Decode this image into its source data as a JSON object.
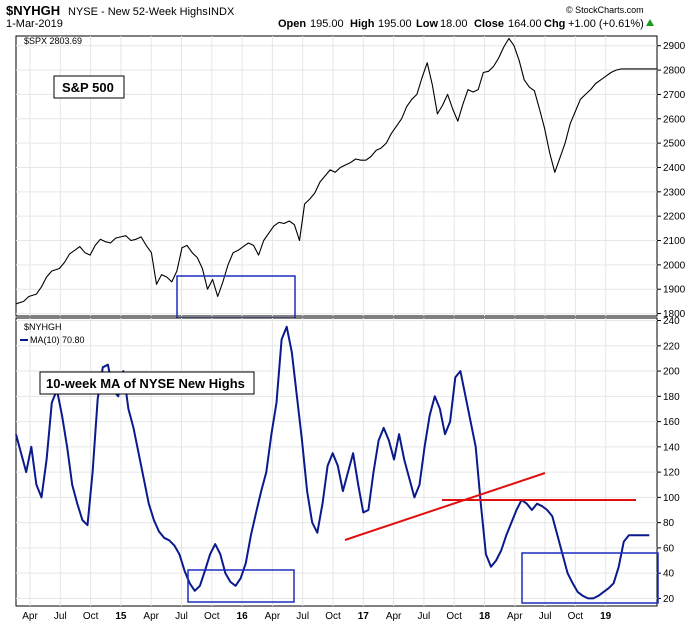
{
  "header": {
    "symbol": "$NYHGH",
    "title": "NYSE - New 52-Week Highs",
    "exchange": "INDX",
    "date": "1-Mar-2019",
    "open_label": "Open",
    "open": "195.00",
    "high_label": "High",
    "high": "195.00",
    "low_label": "Low",
    "low": "18.00",
    "close_label": "Close",
    "close": "164.00",
    "chg_label": "Chg",
    "chg": "+1.00 (+0.61%)",
    "watermark": "© StockCharts.com"
  },
  "colors": {
    "price": "#000000",
    "ma": "#0a1a8c",
    "box": "#1a2fbf",
    "trendline": "#e01010",
    "grid": "#e6e6e6"
  },
  "chart_data": [
    {
      "type": "line",
      "legend": "$SPX 2803.69",
      "annotation": "S&P 500",
      "ylim": [
        1790,
        2940
      ],
      "yticks": [
        1800,
        1900,
        2000,
        2100,
        2200,
        2300,
        2400,
        2500,
        2600,
        2700,
        2800,
        2900
      ],
      "x": [
        0,
        3,
        5,
        8,
        10,
        12,
        14,
        17,
        19,
        21,
        23,
        25,
        27,
        29,
        31,
        33,
        35,
        37,
        39,
        41,
        43,
        45,
        47,
        49,
        51,
        53,
        55,
        57,
        59,
        61,
        63,
        65,
        67,
        69,
        71,
        73,
        75,
        77,
        79,
        81,
        83,
        85,
        87,
        89,
        91,
        93,
        95,
        97,
        99,
        101,
        103,
        105,
        107,
        109,
        111,
        113,
        115,
        117,
        119,
        121,
        123,
        125,
        127,
        129,
        131,
        133,
        135,
        137,
        139,
        141,
        143,
        145,
        147,
        149,
        151,
        153,
        155,
        157,
        159,
        161,
        163,
        165,
        167,
        169,
        171,
        173,
        175,
        177,
        179,
        181,
        183,
        185,
        187,
        189,
        191,
        193,
        195,
        197,
        199,
        201,
        203,
        205,
        207,
        209,
        211,
        213,
        215,
        217,
        219,
        221,
        223,
        225,
        227,
        229,
        231,
        233,
        235,
        237,
        239,
        241,
        243,
        245,
        247,
        249,
        251
      ],
      "values": [
        1840,
        1850,
        1870,
        1880,
        1910,
        1950,
        1975,
        1985,
        2010,
        2045,
        2060,
        2075,
        2050,
        2040,
        2080,
        2105,
        2095,
        2090,
        2110,
        2115,
        2120,
        2100,
        2105,
        2115,
        2080,
        2050,
        1920,
        1960,
        1950,
        1930,
        1975,
        2070,
        2080,
        2050,
        2030,
        1985,
        1900,
        1940,
        1870,
        1930,
        2000,
        2050,
        2060,
        2075,
        2090,
        2080,
        2040,
        2100,
        2130,
        2160,
        2175,
        2170,
        2180,
        2165,
        2100,
        2250,
        2270,
        2295,
        2340,
        2365,
        2390,
        2380,
        2400,
        2410,
        2420,
        2435,
        2430,
        2430,
        2445,
        2470,
        2480,
        2500,
        2540,
        2570,
        2600,
        2650,
        2680,
        2700,
        2770,
        2830,
        2740,
        2620,
        2655,
        2700,
        2640,
        2590,
        2660,
        2720,
        2710,
        2720,
        2790,
        2795,
        2815,
        2850,
        2895,
        2930,
        2900,
        2840,
        2760,
        2730,
        2715,
        2640,
        2560,
        2460,
        2380,
        2440,
        2500,
        2580,
        2630,
        2680,
        2700,
        2720,
        2745,
        2760,
        2775,
        2790,
        2800,
        2805,
        2805,
        2805,
        2805,
        2805,
        2805,
        2805,
        2805
      ]
    },
    {
      "type": "line",
      "legend_symbol": "$NYHGH",
      "legend": "MA(10) 70.80",
      "annotation": "10-week MA of NYSE New Highs",
      "ylim": [
        14,
        242
      ],
      "yticks": [
        20,
        40,
        60,
        80,
        100,
        120,
        140,
        160,
        180,
        200,
        220,
        240
      ],
      "x": [
        0,
        2,
        4,
        6,
        8,
        10,
        12,
        14,
        16,
        18,
        20,
        22,
        24,
        26,
        28,
        30,
        32,
        34,
        36,
        38,
        40,
        42,
        44,
        46,
        48,
        50,
        52,
        54,
        56,
        58,
        60,
        62,
        64,
        66,
        68,
        70,
        72,
        74,
        76,
        78,
        80,
        82,
        84,
        86,
        88,
        90,
        92,
        94,
        96,
        98,
        100,
        102,
        104,
        106,
        108,
        110,
        112,
        114,
        116,
        118,
        120,
        122,
        124,
        126,
        128,
        130,
        132,
        134,
        136,
        138,
        140,
        142,
        144,
        146,
        148,
        150,
        152,
        154,
        156,
        158,
        160,
        162,
        164,
        166,
        168,
        170,
        172,
        174,
        176,
        178,
        180,
        182,
        184,
        186,
        188,
        190,
        192,
        194,
        196,
        198,
        200,
        202,
        204,
        206,
        208,
        210,
        212,
        214,
        216,
        218,
        220,
        222,
        224,
        226,
        228,
        230,
        232,
        234,
        236,
        238,
        240,
        242,
        244,
        246,
        248
      ],
      "values": [
        150,
        135,
        120,
        140,
        110,
        100,
        130,
        175,
        185,
        165,
        140,
        110,
        95,
        82,
        78,
        120,
        178,
        203,
        205,
        185,
        180,
        200,
        170,
        155,
        135,
        115,
        95,
        82,
        73,
        68,
        66,
        62,
        55,
        42,
        32,
        26,
        30,
        42,
        55,
        63,
        55,
        40,
        33,
        30,
        36,
        48,
        70,
        88,
        105,
        120,
        150,
        175,
        225,
        235,
        215,
        180,
        145,
        105,
        80,
        72,
        95,
        125,
        135,
        125,
        105,
        120,
        135,
        110,
        88,
        90,
        120,
        145,
        155,
        145,
        130,
        150,
        130,
        115,
        100,
        110,
        140,
        165,
        180,
        170,
        150,
        160,
        195,
        200,
        180,
        160,
        140,
        95,
        55,
        45,
        50,
        58,
        70,
        80,
        90,
        98,
        95,
        90,
        95,
        93,
        90,
        85,
        70,
        55,
        40,
        32,
        25,
        22,
        20,
        20,
        22,
        25,
        28,
        32,
        45,
        65,
        70,
        70,
        70,
        70,
        70
      ]
    }
  ],
  "x_labels": [
    "Apr",
    "Jul",
    "Oct",
    "15",
    "Apr",
    "Jul",
    "Oct",
    "16",
    "Apr",
    "Jul",
    "Oct",
    "17",
    "Apr",
    "Jul",
    "Oct",
    "18",
    "Apr",
    "Jul",
    "Oct",
    "19"
  ],
  "x_label_bold": [
    false,
    false,
    false,
    true,
    false,
    false,
    false,
    true,
    false,
    false,
    false,
    true,
    false,
    false,
    false,
    true,
    false,
    false,
    false,
    true
  ]
}
